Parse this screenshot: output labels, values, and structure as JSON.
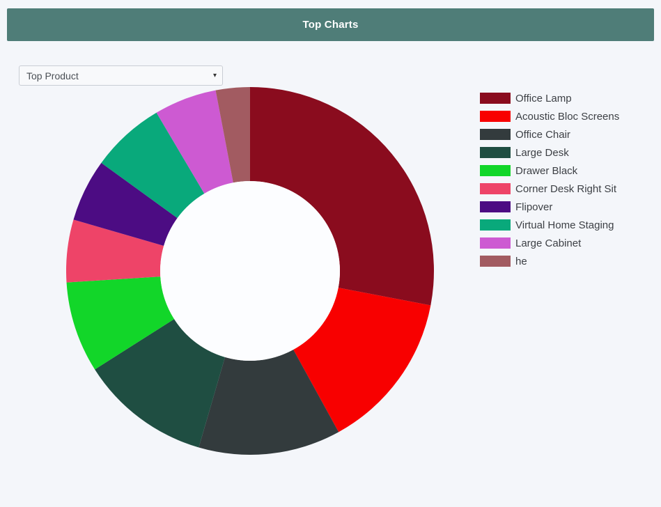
{
  "header": {
    "title": "Top Charts"
  },
  "controls": {
    "select": {
      "value": "Top Product"
    }
  },
  "chart_data": {
    "type": "pie",
    "subtype": "donut",
    "title": "Top Product",
    "legend_position": "right",
    "start_angle_deg": 0,
    "inner_radius_ratio": 0.49,
    "labels": [
      "Office Lamp",
      "Acoustic Bloc Screens",
      "Office Chair",
      "Large Desk",
      "Drawer Black",
      "Corner Desk Right Sit",
      "Flipover",
      "Virtual Home Staging",
      "Large Cabinet",
      "he"
    ],
    "values_percent": [
      28,
      14,
      12.5,
      11.5,
      8,
      5.5,
      5.5,
      6.5,
      5.5,
      3
    ],
    "colors": [
      "#8a0c1e",
      "#f80000",
      "#333b3d",
      "#1f4e42",
      "#12d629",
      "#ee4468",
      "#4c0c83",
      "#09a97b",
      "#cd5ad2",
      "#a25b61"
    ],
    "hole_color": "#fcfdff"
  }
}
